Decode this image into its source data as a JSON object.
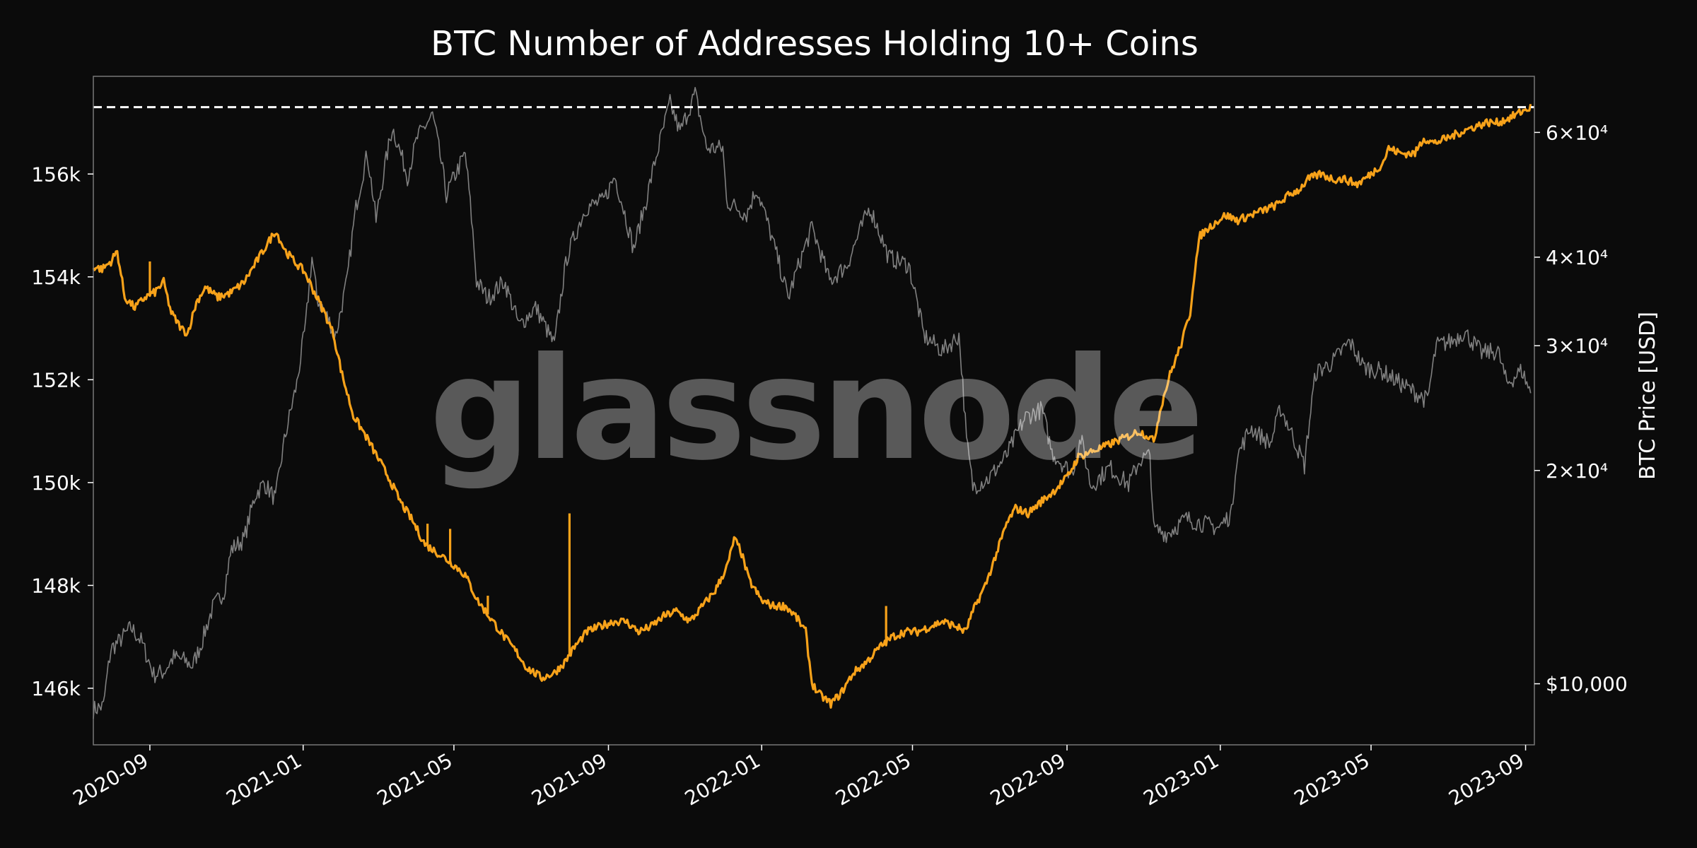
{
  "chart_data": {
    "type": "line",
    "title": "BTC Number of Addresses Holding 10+ Coins",
    "watermark": "glassnode",
    "background_color": "#0b0b0b",
    "y_left": {
      "label": "",
      "lim": [
        144900,
        157900
      ],
      "ticks": [
        146000,
        148000,
        150000,
        152000,
        154000,
        156000
      ],
      "tick_labels": [
        "146k",
        "148k",
        "150k",
        "152k",
        "154k",
        "156k"
      ]
    },
    "y_right": {
      "label": "BTC Price [USD]",
      "scale": "log",
      "lim": [
        8200,
        72000
      ],
      "ticks": [
        10000,
        20000,
        30000,
        40000,
        60000
      ],
      "tick_labels": [
        "$10,000",
        "2×10⁴",
        "3×10⁴",
        "4×10⁴",
        "6×10⁴"
      ]
    },
    "x_axis": {
      "lim": [
        "2020-07-18",
        "2023-09-08"
      ],
      "ticks": [
        "2020-09-01",
        "2021-01-01",
        "2021-05-01",
        "2021-09-01",
        "2022-01-01",
        "2022-05-01",
        "2022-09-01",
        "2023-01-01",
        "2023-05-01",
        "2023-09-01"
      ],
      "tick_labels": [
        "2020-09",
        "2021-01",
        "2021-05",
        "2021-09",
        "2022-01",
        "2022-05",
        "2022-09",
        "2023-01",
        "2023-05",
        "2023-09"
      ]
    },
    "reference_line": {
      "value": 157300,
      "style": "dashed",
      "color": "#ffffff"
    },
    "series": [
      {
        "axis": "left",
        "color": "#f7a21a",
        "points": [
          [
            "2020-07-18",
            154200
          ],
          [
            "2020-07-25",
            154150
          ],
          [
            "2020-08-01",
            154300
          ],
          [
            "2020-08-06",
            154500
          ],
          [
            "2020-08-12",
            153600
          ],
          [
            "2020-08-20",
            153400
          ],
          [
            "2020-08-28",
            153600
          ],
          [
            "2020-09-05",
            153700
          ],
          [
            "2020-09-12",
            153900
          ],
          [
            "2020-09-18",
            153300
          ],
          [
            "2020-09-26",
            153000
          ],
          [
            "2020-10-01",
            152900
          ],
          [
            "2020-10-08",
            153500
          ],
          [
            "2020-10-15",
            153800
          ],
          [
            "2020-10-25",
            153600
          ],
          [
            "2020-11-05",
            153700
          ],
          [
            "2020-11-15",
            153900
          ],
          [
            "2020-11-25",
            154300
          ],
          [
            "2020-12-05",
            154700
          ],
          [
            "2020-12-10",
            154900
          ],
          [
            "2020-12-18",
            154500
          ],
          [
            "2020-12-25",
            154300
          ],
          [
            "2021-01-02",
            154100
          ],
          [
            "2021-01-10",
            153700
          ],
          [
            "2021-01-18",
            153300
          ],
          [
            "2021-01-25",
            152900
          ],
          [
            "2021-02-01",
            152100
          ],
          [
            "2021-02-10",
            151300
          ],
          [
            "2021-02-20",
            150900
          ],
          [
            "2021-03-01",
            150500
          ],
          [
            "2021-03-10",
            150100
          ],
          [
            "2021-03-20",
            149600
          ],
          [
            "2021-03-28",
            149300
          ],
          [
            "2021-04-08",
            148800
          ],
          [
            "2021-04-20",
            148600
          ],
          [
            "2021-05-01",
            148400
          ],
          [
            "2021-05-10",
            148200
          ],
          [
            "2021-05-20",
            147700
          ],
          [
            "2021-06-01",
            147300
          ],
          [
            "2021-06-10",
            147000
          ],
          [
            "2021-06-20",
            146700
          ],
          [
            "2021-06-28",
            146400
          ],
          [
            "2021-07-10",
            146200
          ],
          [
            "2021-07-20",
            146300
          ],
          [
            "2021-07-28",
            146500
          ],
          [
            "2021-08-05",
            146800
          ],
          [
            "2021-08-15",
            147100
          ],
          [
            "2021-08-25",
            147200
          ],
          [
            "2021-09-05",
            147300
          ],
          [
            "2021-09-15",
            147300
          ],
          [
            "2021-09-25",
            147100
          ],
          [
            "2021-10-05",
            147200
          ],
          [
            "2021-10-15",
            147400
          ],
          [
            "2021-10-25",
            147500
          ],
          [
            "2021-11-05",
            147300
          ],
          [
            "2021-11-15",
            147600
          ],
          [
            "2021-11-25",
            147900
          ],
          [
            "2021-12-05",
            148400
          ],
          [
            "2021-12-10",
            148900
          ],
          [
            "2021-12-15",
            148700
          ],
          [
            "2021-12-22",
            148100
          ],
          [
            "2022-01-01",
            147700
          ],
          [
            "2022-01-10",
            147600
          ],
          [
            "2022-01-20",
            147600
          ],
          [
            "2022-01-28",
            147400
          ],
          [
            "2022-02-05",
            147100
          ],
          [
            "2022-02-10",
            146100
          ],
          [
            "2022-02-15",
            145900
          ],
          [
            "2022-02-25",
            145700
          ],
          [
            "2022-03-05",
            145900
          ],
          [
            "2022-03-15",
            146300
          ],
          [
            "2022-03-25",
            146500
          ],
          [
            "2022-04-05",
            146800
          ],
          [
            "2022-04-15",
            147000
          ],
          [
            "2022-04-25",
            147100
          ],
          [
            "2022-05-05",
            147100
          ],
          [
            "2022-05-15",
            147200
          ],
          [
            "2022-05-25",
            147300
          ],
          [
            "2022-06-05",
            147200
          ],
          [
            "2022-06-12",
            147100
          ],
          [
            "2022-06-20",
            147600
          ],
          [
            "2022-06-28",
            148000
          ],
          [
            "2022-07-08",
            148700
          ],
          [
            "2022-07-15",
            149200
          ],
          [
            "2022-07-22",
            149500
          ],
          [
            "2022-08-01",
            149400
          ],
          [
            "2022-08-10",
            149600
          ],
          [
            "2022-08-20",
            149800
          ],
          [
            "2022-09-01",
            150100
          ],
          [
            "2022-09-10",
            150500
          ],
          [
            "2022-09-20",
            150600
          ],
          [
            "2022-10-01",
            150700
          ],
          [
            "2022-10-10",
            150800
          ],
          [
            "2022-10-20",
            150900
          ],
          [
            "2022-10-28",
            151000
          ],
          [
            "2022-11-05",
            150900
          ],
          [
            "2022-11-09",
            150800
          ],
          [
            "2022-11-15",
            151500
          ],
          [
            "2022-11-22",
            152100
          ],
          [
            "2022-12-01",
            152700
          ],
          [
            "2022-12-08",
            153300
          ],
          [
            "2022-12-12",
            154200
          ],
          [
            "2022-12-16",
            154800
          ],
          [
            "2022-12-25",
            155000
          ],
          [
            "2023-01-05",
            155200
          ],
          [
            "2023-01-15",
            155100
          ],
          [
            "2023-01-25",
            155200
          ],
          [
            "2023-02-05",
            155300
          ],
          [
            "2023-02-15",
            155400
          ],
          [
            "2023-02-25",
            155600
          ],
          [
            "2023-03-05",
            155700
          ],
          [
            "2023-03-12",
            155900
          ],
          [
            "2023-03-22",
            156000
          ],
          [
            "2023-04-01",
            155900
          ],
          [
            "2023-04-10",
            155900
          ],
          [
            "2023-04-20",
            155800
          ],
          [
            "2023-05-01",
            156000
          ],
          [
            "2023-05-10",
            156200
          ],
          [
            "2023-05-15",
            156500
          ],
          [
            "2023-05-25",
            156400
          ],
          [
            "2023-06-05",
            156400
          ],
          [
            "2023-06-12",
            156700
          ],
          [
            "2023-06-20",
            156600
          ],
          [
            "2023-07-01",
            156700
          ],
          [
            "2023-07-10",
            156800
          ],
          [
            "2023-07-20",
            156900
          ],
          [
            "2023-08-01",
            157000
          ],
          [
            "2023-08-10",
            157000
          ],
          [
            "2023-08-20",
            157100
          ],
          [
            "2023-08-28",
            157200
          ],
          [
            "2023-09-05",
            157300
          ]
        ],
        "spikes": [
          [
            "2020-09-01",
            154300
          ],
          [
            "2021-04-10",
            149200
          ],
          [
            "2021-04-28",
            149100
          ],
          [
            "2021-05-28",
            147800
          ],
          [
            "2021-08-01",
            149400
          ],
          [
            "2022-04-10",
            147600
          ]
        ]
      },
      {
        "axis": "right",
        "color": "#808080",
        "points": [
          [
            "2020-07-18",
            9200
          ],
          [
            "2020-07-26",
            9300
          ],
          [
            "2020-08-01",
            11200
          ],
          [
            "2020-08-08",
            11500
          ],
          [
            "2020-08-17",
            12000
          ],
          [
            "2020-08-25",
            11500
          ],
          [
            "2020-09-04",
            10300
          ],
          [
            "2020-09-12",
            10400
          ],
          [
            "2020-09-20",
            10900
          ],
          [
            "2020-09-28",
            10800
          ],
          [
            "2020-10-05",
            10600
          ],
          [
            "2020-10-12",
            11400
          ],
          [
            "2020-10-21",
            12800
          ],
          [
            "2020-10-30",
            13500
          ],
          [
            "2020-11-05",
            15500
          ],
          [
            "2020-11-15",
            16000
          ],
          [
            "2020-11-24",
            18500
          ],
          [
            "2020-12-01",
            19200
          ],
          [
            "2020-12-10",
            18200
          ],
          [
            "2020-12-17",
            22000
          ],
          [
            "2020-12-27",
            26500
          ],
          [
            "2021-01-03",
            32000
          ],
          [
            "2021-01-08",
            40000
          ],
          [
            "2021-01-12",
            35000
          ],
          [
            "2021-01-20",
            33000
          ],
          [
            "2021-01-27",
            31000
          ],
          [
            "2021-02-05",
            37000
          ],
          [
            "2021-02-12",
            47000
          ],
          [
            "2021-02-21",
            56000
          ],
          [
            "2021-02-28",
            45000
          ],
          [
            "2021-03-13",
            61000
          ],
          [
            "2021-03-25",
            52000
          ],
          [
            "2021-04-02",
            59000
          ],
          [
            "2021-04-14",
            63500
          ],
          [
            "2021-04-25",
            49000
          ],
          [
            "2021-05-10",
            56000
          ],
          [
            "2021-05-19",
            37000
          ],
          [
            "2021-05-28",
            35000
          ],
          [
            "2021-06-10",
            37000
          ],
          [
            "2021-06-22",
            32000
          ],
          [
            "2021-07-05",
            34000
          ],
          [
            "2021-07-20",
            30000
          ],
          [
            "2021-07-30",
            40000
          ],
          [
            "2021-08-14",
            47000
          ],
          [
            "2021-08-28",
            48000
          ],
          [
            "2021-09-06",
            52000
          ],
          [
            "2021-09-21",
            41000
          ],
          [
            "2021-10-01",
            48000
          ],
          [
            "2021-10-15",
            61000
          ],
          [
            "2021-10-20",
            66000
          ],
          [
            "2021-10-28",
            60000
          ],
          [
            "2021-11-09",
            68000
          ],
          [
            "2021-11-18",
            57000
          ],
          [
            "2021-12-01",
            57000
          ],
          [
            "2021-12-04",
            48000
          ],
          [
            "2021-12-20",
            46000
          ],
          [
            "2021-12-28",
            50000
          ],
          [
            "2022-01-10",
            42000
          ],
          [
            "2022-01-22",
            35000
          ],
          [
            "2022-02-10",
            44000
          ],
          [
            "2022-02-24",
            37000
          ],
          [
            "2022-03-10",
            39000
          ],
          [
            "2022-03-28",
            47000
          ],
          [
            "2022-04-12",
            40000
          ],
          [
            "2022-04-28",
            39000
          ],
          [
            "2022-05-10",
            31000
          ],
          [
            "2022-05-25",
            29500
          ],
          [
            "2022-06-07",
            31000
          ],
          [
            "2022-06-13",
            22000
          ],
          [
            "2022-06-18",
            19000
          ],
          [
            "2022-07-01",
            19500
          ],
          [
            "2022-07-15",
            21000
          ],
          [
            "2022-07-30",
            23800
          ],
          [
            "2022-08-12",
            24400
          ],
          [
            "2022-08-20",
            21200
          ],
          [
            "2022-09-05",
            19800
          ],
          [
            "2022-09-12",
            22200
          ],
          [
            "2022-09-20",
            19000
          ],
          [
            "2022-10-05",
            20200
          ],
          [
            "2022-10-20",
            19100
          ],
          [
            "2022-10-29",
            20700
          ],
          [
            "2022-11-06",
            21000
          ],
          [
            "2022-11-09",
            16500
          ],
          [
            "2022-11-20",
            16300
          ],
          [
            "2022-12-05",
            17100
          ],
          [
            "2022-12-20",
            16800
          ],
          [
            "2022-12-31",
            16600
          ],
          [
            "2023-01-10",
            17400
          ],
          [
            "2023-01-14",
            20800
          ],
          [
            "2023-01-25",
            23000
          ],
          [
            "2023-02-10",
            21800
          ],
          [
            "2023-02-18",
            24500
          ],
          [
            "2023-03-09",
            20300
          ],
          [
            "2023-03-18",
            27500
          ],
          [
            "2023-03-31",
            28400
          ],
          [
            "2023-04-14",
            30400
          ],
          [
            "2023-04-25",
            28000
          ],
          [
            "2023-05-10",
            27600
          ],
          [
            "2023-05-25",
            26500
          ],
          [
            "2023-06-15",
            25100
          ],
          [
            "2023-06-22",
            30000
          ],
          [
            "2023-07-05",
            30500
          ],
          [
            "2023-07-14",
            31400
          ],
          [
            "2023-07-28",
            29300
          ],
          [
            "2023-08-10",
            29500
          ],
          [
            "2023-08-17",
            26500
          ],
          [
            "2023-08-29",
            27700
          ],
          [
            "2023-09-05",
            25700
          ]
        ]
      }
    ]
  }
}
